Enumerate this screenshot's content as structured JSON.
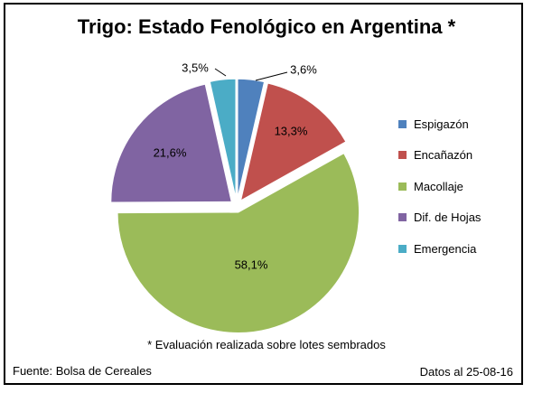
{
  "chart_data": {
    "type": "pie",
    "title": "Trigo: Estado Fenológico en Argentina *",
    "categories": [
      "Espigazón",
      "Encañazón",
      "Macollaje",
      "Dif. de Hojas",
      "Emergencia"
    ],
    "values": [
      3.6,
      13.3,
      58.1,
      21.6,
      3.5
    ],
    "labels": [
      "3,6%",
      "13,3%",
      "58,1%",
      "21,6%",
      "3,5%"
    ],
    "colors": [
      "#4f81bd",
      "#c0504d",
      "#9bbb59",
      "#8064a2",
      "#4bacc6"
    ],
    "exploded": true,
    "legend_position": "right",
    "footnote": "* Evaluación realizada sobre lotes sembrados"
  },
  "footer": {
    "source": "Fuente: Bolsa de Cereales",
    "date": "Datos al 25-08-16"
  }
}
